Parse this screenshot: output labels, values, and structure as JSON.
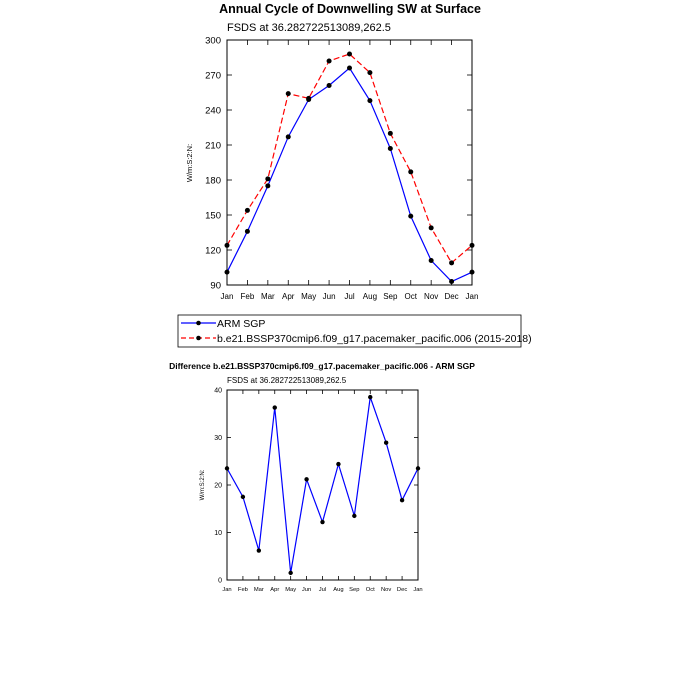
{
  "chart_data": [
    {
      "type": "line",
      "title": "Annual Cycle of Downwelling SW at Surface",
      "subtitle": "FSDS at 36.282722513089,262.5",
      "ylabel": "W/m:S:2:N:",
      "xlabel": "",
      "categories": [
        "Jan",
        "Feb",
        "Mar",
        "Apr",
        "May",
        "Jun",
        "Jul",
        "Aug",
        "Sep",
        "Oct",
        "Nov",
        "Dec",
        "Jan"
      ],
      "ylim": [
        90,
        300
      ],
      "yticks": [
        90,
        120,
        150,
        180,
        210,
        240,
        270,
        300
      ],
      "grid": false,
      "legend_position": "bottom",
      "series": [
        {
          "name": "ARM SGP",
          "color": "#0000ff",
          "style": "solid",
          "values": [
            101,
            136,
            175,
            217,
            249,
            261,
            276,
            248,
            207,
            149,
            111,
            93,
            101
          ]
        },
        {
          "name": "b.e21.BSSP370cmip6.f09_g17.pacemaker_pacific.006 (2015-2018)",
          "color": "#ff0000",
          "style": "dashed",
          "values": [
            124,
            154,
            181,
            254,
            250,
            282,
            288,
            272,
            220,
            187,
            139,
            109,
            124
          ]
        }
      ]
    },
    {
      "type": "line",
      "title": "Difference b.e21.BSSP370cmip6.f09_g17.pacemaker_pacific.006 - ARM SGP",
      "subtitle": "FSDS at 36.282722513089,262.5",
      "ylabel": "W/m:S:2:N:",
      "xlabel": "",
      "categories": [
        "Jan",
        "Feb",
        "Mar",
        "Apr",
        "May",
        "Jun",
        "Jul",
        "Aug",
        "Sep",
        "Oct",
        "Nov",
        "Dec",
        "Jan"
      ],
      "ylim": [
        0,
        40
      ],
      "yticks": [
        0,
        10,
        20,
        30,
        40
      ],
      "grid": false,
      "series": [
        {
          "color": "#0000ff",
          "style": "solid",
          "values": [
            23.5,
            17.5,
            6.2,
            36.3,
            1.5,
            21.2,
            12.2,
            24.4,
            13.5,
            38.5,
            28.9,
            16.8,
            23.5
          ]
        }
      ]
    }
  ]
}
